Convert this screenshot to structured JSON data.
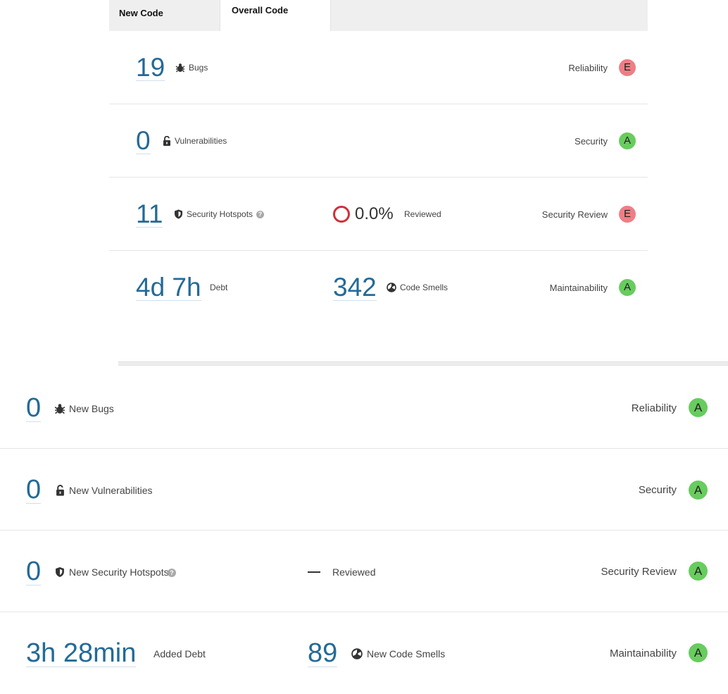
{
  "tabs": {
    "new_code": "New Code",
    "overall_code": "Overall Code"
  },
  "overall": {
    "bugs": {
      "value": "19",
      "label": "Bugs",
      "rating_label": "Reliability",
      "rating": "E"
    },
    "vulnerabilities": {
      "value": "0",
      "label": "Vulnerabilities",
      "rating_label": "Security",
      "rating": "A"
    },
    "hotspots": {
      "value": "11",
      "label": "Security Hotspots",
      "help": "?",
      "reviewed_pct": "0.0%",
      "reviewed_label": "Reviewed",
      "rating_label": "Security Review",
      "rating": "E"
    },
    "maintainability": {
      "debt": "4d 7h",
      "debt_label": "Debt",
      "smells": "342",
      "smells_label": "Code Smells",
      "rating_label": "Maintainability",
      "rating": "A"
    }
  },
  "new_code": {
    "bugs": {
      "value": "0",
      "label": "New Bugs",
      "rating_label": "Reliability",
      "rating": "A"
    },
    "vulnerabilities": {
      "value": "0",
      "label": "New Vulnerabilities",
      "rating_label": "Security",
      "rating": "A"
    },
    "hotspots": {
      "value": "0",
      "label": "New Security Hotspots",
      "help": "?",
      "reviewed_value": "—",
      "reviewed_label": "Reviewed",
      "rating_label": "Security Review",
      "rating": "A"
    },
    "maintainability": {
      "debt": "3h 28min",
      "debt_label": "Added Debt",
      "smells": "89",
      "smells_label": "New Code Smells",
      "rating_label": "Maintainability",
      "rating": "A"
    }
  },
  "colors": {
    "rating_A": "#68cc5e",
    "rating_E": "#ef7e86",
    "measure_link": "#236a97",
    "hotspot_ring": "#d02f3a"
  }
}
